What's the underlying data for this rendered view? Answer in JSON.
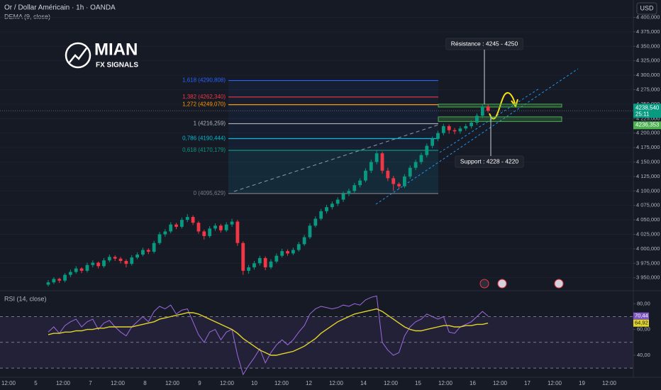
{
  "chart_data": {
    "type": "candlestick",
    "title": "Or / Dollar Américain · 1h · OANDA",
    "indicator": "DEMA (9, close)",
    "currency": "USD",
    "logo": {
      "title": "MIAN",
      "subtitle": "FX SIGNALS"
    },
    "colors": {
      "up": "#089981",
      "down": "#f23645"
    },
    "candles": [
      [
        3938,
        3946,
        3935,
        3942
      ],
      [
        3942,
        3951,
        3939,
        3948
      ],
      [
        3948,
        3950,
        3941,
        3945
      ],
      [
        3945,
        3958,
        3942,
        3955
      ],
      [
        3955,
        3964,
        3951,
        3960
      ],
      [
        3960,
        3970,
        3957,
        3966
      ],
      [
        3966,
        3968,
        3958,
        3962
      ],
      [
        3962,
        3976,
        3959,
        3972
      ],
      [
        3972,
        3980,
        3968,
        3976
      ],
      [
        3976,
        3978,
        3966,
        3970
      ],
      [
        3970,
        3984,
        3967,
        3980
      ],
      [
        3980,
        3990,
        3977,
        3986
      ],
      [
        3986,
        3989,
        3979,
        3983
      ],
      [
        3983,
        3986,
        3975,
        3979
      ],
      [
        3979,
        3982,
        3968,
        3974
      ],
      [
        3974,
        3989,
        3971,
        3985
      ],
      [
        3985,
        3994,
        3982,
        3990
      ],
      [
        3990,
        4002,
        3987,
        3998
      ],
      [
        3998,
        4001,
        3991,
        3995
      ],
      [
        3995,
        4014,
        3992,
        4010
      ],
      [
        4010,
        4029,
        4007,
        4025
      ],
      [
        4025,
        4034,
        4021,
        4030
      ],
      [
        4030,
        4046,
        4027,
        4042
      ],
      [
        4042,
        4045,
        4034,
        4038
      ],
      [
        4038,
        4054,
        4035,
        4050
      ],
      [
        4050,
        4060,
        4046,
        4055
      ],
      [
        4055,
        4058,
        4041,
        4045
      ],
      [
        4045,
        4048,
        4026,
        4030
      ],
      [
        4030,
        4033,
        4016,
        4022
      ],
      [
        4022,
        4039,
        4019,
        4035
      ],
      [
        4035,
        4044,
        4031,
        4040
      ],
      [
        4040,
        4043,
        4028,
        4032
      ],
      [
        4032,
        4046,
        4029,
        4042
      ],
      [
        4042,
        4052,
        4038,
        4047
      ],
      [
        4047,
        4050,
        4005,
        4010
      ],
      [
        4010,
        4013,
        3955,
        3962
      ],
      [
        3962,
        3972,
        3957,
        3968
      ],
      [
        3968,
        3979,
        3964,
        3975
      ],
      [
        3975,
        3988,
        3971,
        3984
      ],
      [
        3984,
        3987,
        3963,
        3968
      ],
      [
        3968,
        3982,
        3965,
        3978
      ],
      [
        3978,
        3992,
        3975,
        3988
      ],
      [
        3988,
        4000,
        3985,
        3996
      ],
      [
        3996,
        3999,
        3988,
        3992
      ],
      [
        3992,
        4002,
        3989,
        3998
      ],
      [
        3998,
        4012,
        3995,
        4008
      ],
      [
        4008,
        4024,
        4005,
        4020
      ],
      [
        4020,
        4044,
        4017,
        4040
      ],
      [
        4040,
        4056,
        4037,
        4052
      ],
      [
        4052,
        4069,
        4049,
        4065
      ],
      [
        4065,
        4076,
        4061,
        4072
      ],
      [
        4072,
        4082,
        4068,
        4078
      ],
      [
        4078,
        4089,
        4074,
        4085
      ],
      [
        4085,
        4099,
        4081,
        4095
      ],
      [
        4095,
        4104,
        4091,
        4100
      ],
      [
        4100,
        4114,
        4097,
        4110
      ],
      [
        4110,
        4122,
        4106,
        4118
      ],
      [
        4118,
        4139,
        4115,
        4135
      ],
      [
        4135,
        4154,
        4131,
        4150
      ],
      [
        4150,
        4170,
        4146,
        4165
      ],
      [
        4165,
        4168,
        4130,
        4135
      ],
      [
        4135,
        4140,
        4117,
        4122
      ],
      [
        4122,
        4126,
        4100,
        4112
      ],
      [
        4112,
        4115,
        4103,
        4108
      ],
      [
        4108,
        4129,
        4105,
        4125
      ],
      [
        4125,
        4144,
        4121,
        4140
      ],
      [
        4140,
        4154,
        4136,
        4150
      ],
      [
        4150,
        4166,
        4146,
        4162
      ],
      [
        4162,
        4182,
        4158,
        4178
      ],
      [
        4178,
        4194,
        4174,
        4190
      ],
      [
        4190,
        4204,
        4186,
        4200
      ],
      [
        4200,
        4216,
        4196,
        4212
      ],
      [
        4212,
        4215,
        4199,
        4205
      ],
      [
        4205,
        4209,
        4198,
        4203
      ],
      [
        4203,
        4212,
        4199,
        4208
      ],
      [
        4208,
        4216,
        4204,
        4212
      ],
      [
        4212,
        4222,
        4208,
        4218
      ],
      [
        4218,
        4234,
        4214,
        4230
      ],
      [
        4230,
        4250,
        4226,
        4246
      ],
      [
        4246,
        4249,
        4235,
        4238.54
      ]
    ],
    "ylim": [
      3930,
      4430
    ],
    "yticks": [
      {
        "value": 3950,
        "label": "3 950,000"
      },
      {
        "value": 3975,
        "label": "3 975,000"
      },
      {
        "value": 4000,
        "label": "4 000,000"
      },
      {
        "value": 4025,
        "label": "4 025,000"
      },
      {
        "value": 4050,
        "label": "4 050,000"
      },
      {
        "value": 4075,
        "label": "4 075,000"
      },
      {
        "value": 4100,
        "label": "4 100,000"
      },
      {
        "value": 4125,
        "label": "4 125,000"
      },
      {
        "value": 4150,
        "label": "4 150,000"
      },
      {
        "value": 4175,
        "label": "4 175,000"
      },
      {
        "value": 4200,
        "label": "4 200,000"
      },
      {
        "value": 4225,
        "label": "4 225,000"
      },
      {
        "value": 4250,
        "label": "4 250,000"
      },
      {
        "value": 4275,
        "label": "4 275,000"
      },
      {
        "value": 4300,
        "label": "4 300,000"
      },
      {
        "value": 4325,
        "label": "4 325,000"
      },
      {
        "value": 4350,
        "label": "4 350,000"
      },
      {
        "value": 4375,
        "label": "4 375,000"
      },
      {
        "value": 4400,
        "label": "4 400,000"
      }
    ],
    "time_labels": [
      "12:00",
      "5",
      "12:00",
      "7",
      "12:00",
      "8",
      "12:00",
      "9",
      "12:00",
      "10",
      "12:00",
      "12",
      "12:00",
      "14",
      "12:00",
      "15",
      "12:00",
      "16",
      "12:00",
      "17",
      "12:00",
      "19",
      "12:00"
    ],
    "last_price": {
      "value": 4238.54,
      "label": "4238,540"
    },
    "countdown": "25:11",
    "dema_last": {
      "value": 4236.353,
      "label": "4236,353"
    },
    "fib_levels": [
      {
        "value": 4290.808,
        "label": "1,618 (4290,808)",
        "color": "#2962ff"
      },
      {
        "value": 4262.34,
        "label": "1,382 (4262,340)",
        "color": "#f23645"
      },
      {
        "value": 4249.07,
        "label": "1,272 (4249,070)",
        "color": "#ff9800"
      },
      {
        "value": 4216.259,
        "label": "1 (4216,259)",
        "color": "#b2b5be"
      },
      {
        "value": 4190.444,
        "label": "0,786 (4190,444)",
        "color": "#00bcd4"
      },
      {
        "value": 4170.179,
        "label": "0,618 (4170,179)",
        "color": "#089981"
      },
      {
        "value": 4095.629,
        "label": "0 (4095,629)",
        "color": "#787b86"
      }
    ],
    "resistance": {
      "low": 4245,
      "high": 4250,
      "label": "Résistance : 4245 - 4250"
    },
    "support": {
      "low": 4220,
      "high": 4228,
      "label": "Support : 4228 - 4220"
    },
    "rsi": {
      "title": "RSI (14, close)",
      "series": [
        {
          "color": "#9c6ade",
          "values": [
            58,
            62,
            57,
            63,
            66,
            68,
            62,
            66,
            68,
            60,
            65,
            67,
            62,
            58,
            55,
            62,
            66,
            70,
            66,
            74,
            78,
            76,
            79,
            72,
            75,
            76,
            66,
            56,
            50,
            58,
            60,
            52,
            58,
            60,
            40,
            25,
            32,
            38,
            45,
            34,
            42,
            48,
            52,
            48,
            52,
            58,
            63,
            72,
            76,
            78,
            77,
            76,
            77,
            79,
            78,
            80,
            79,
            83,
            85,
            86,
            50,
            44,
            40,
            42,
            55,
            62,
            66,
            68,
            72,
            70,
            68,
            70,
            58,
            57,
            62,
            64,
            66,
            70,
            74,
            70.44
          ]
        },
        {
          "color": "#e3d42a",
          "values": [
            56,
            57,
            57,
            58,
            58,
            59,
            59,
            60,
            60,
            61,
            61,
            62,
            62,
            62,
            62,
            62,
            63,
            64,
            65,
            66,
            68,
            69,
            70,
            71,
            72,
            73,
            73,
            72,
            70,
            68,
            66,
            64,
            62,
            60,
            57,
            53,
            50,
            47,
            44,
            42,
            40,
            40,
            41,
            42,
            43,
            45,
            47,
            50,
            53,
            57,
            60,
            63,
            66,
            68,
            70,
            72,
            73,
            74,
            75,
            76,
            74,
            71,
            68,
            65,
            62,
            60,
            59,
            59,
            60,
            61,
            62,
            63,
            63,
            62,
            62,
            63,
            63,
            64,
            64,
            64.92
          ]
        }
      ],
      "ylim": [
        24,
        89
      ],
      "yticks": [
        {
          "value": 40,
          "label": "40,00"
        },
        {
          "value": 60,
          "label": "60,00"
        },
        {
          "value": 80,
          "label": "80,00"
        }
      ],
      "levels": [
        30,
        50,
        70
      ],
      "last": {
        "value": 70.44,
        "label": "70,44"
      },
      "ma_last": {
        "value": 64.92,
        "label": "64,92"
      }
    }
  }
}
